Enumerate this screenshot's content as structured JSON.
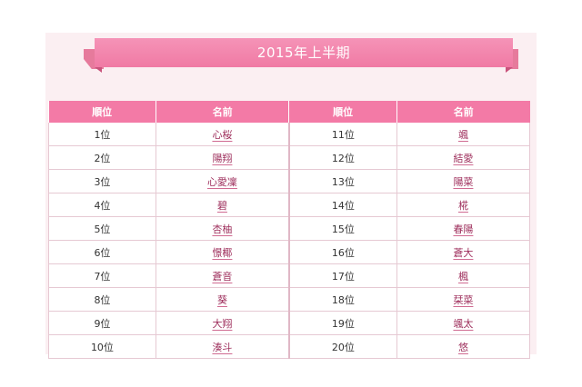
{
  "banner": {
    "title": "2015年上半期"
  },
  "table": {
    "headers": [
      "順位",
      "名前",
      "順位",
      "名前"
    ],
    "rows": [
      {
        "left_rank": "1位",
        "left_name": "心桜",
        "right_rank": "11位",
        "right_name": "颯"
      },
      {
        "left_rank": "2位",
        "left_name": "陽翔",
        "right_rank": "12位",
        "right_name": "結愛"
      },
      {
        "left_rank": "3位",
        "left_name": "心愛凜",
        "right_rank": "13位",
        "right_name": "陽菜"
      },
      {
        "left_rank": "4位",
        "left_name": "碧",
        "right_rank": "14位",
        "right_name": "椛"
      },
      {
        "left_rank": "5位",
        "left_name": "杏柚",
        "right_rank": "15位",
        "right_name": "春陽"
      },
      {
        "left_rank": "6位",
        "left_name": "憬椰",
        "right_rank": "16位",
        "right_name": "蒼大"
      },
      {
        "left_rank": "7位",
        "left_name": "蒼音",
        "right_rank": "17位",
        "right_name": "楓"
      },
      {
        "left_rank": "8位",
        "left_name": "葵",
        "right_rank": "18位",
        "right_name": "栞菜"
      },
      {
        "left_rank": "9位",
        "left_name": "大翔",
        "right_rank": "19位",
        "right_name": "颯太"
      },
      {
        "left_rank": "10位",
        "left_name": "湊斗",
        "right_rank": "20位",
        "right_name": "悠"
      }
    ]
  },
  "colors": {
    "accent": "#f37aa6",
    "panel": "#fbeff2",
    "link": "#9e2f5c"
  }
}
